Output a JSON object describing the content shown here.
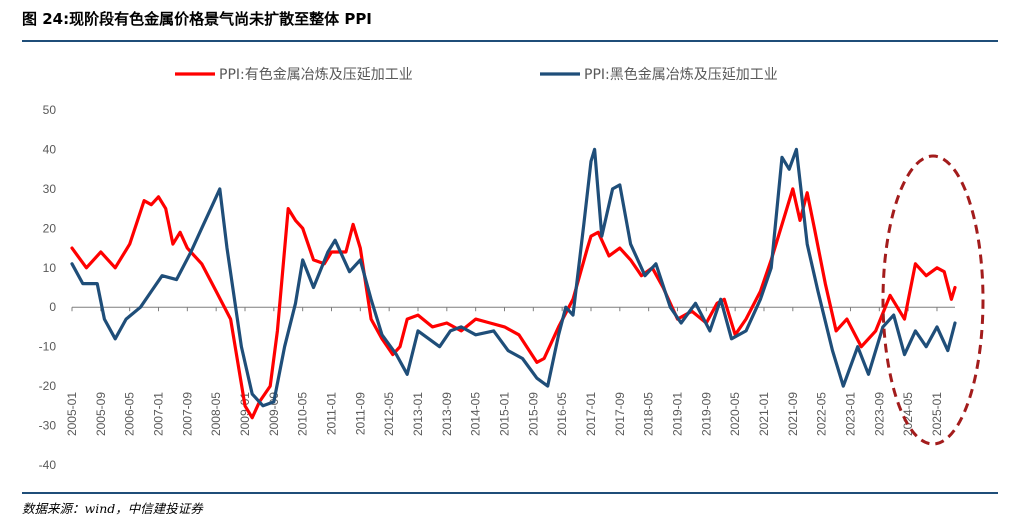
{
  "figure": {
    "title": "图 24:现阶段有色金属价格景气尚未扩散至整体 PPI",
    "source": "数据来源：wind，中信建投证券"
  },
  "chart_data": {
    "type": "line",
    "title": "图 24:现阶段有色金属价格景气尚未扩散至整体 PPI",
    "xlabel": "",
    "ylabel": "",
    "ylim": [
      -40,
      50
    ],
    "yticks": [
      -40,
      -30,
      -20,
      -10,
      0,
      10,
      20,
      30,
      40,
      50
    ],
    "x_range": [
      "2005-01",
      "2025-06"
    ],
    "x_ticks": [
      "2005-01",
      "2005-09",
      "2006-05",
      "2007-01",
      "2007-09",
      "2008-05",
      "2009-01",
      "2009-09",
      "2010-05",
      "2011-01",
      "2011-09",
      "2012-05",
      "2013-01",
      "2013-09",
      "2014-05",
      "2015-01",
      "2015-09",
      "2016-05",
      "2017-01",
      "2017-09",
      "2018-05",
      "2019-01",
      "2019-09",
      "2020-05",
      "2021-01",
      "2021-09",
      "2022-05",
      "2023-01",
      "2023-09",
      "2024-05",
      "2025-01"
    ],
    "legend_position": "top",
    "grid": false,
    "annotation": "dashed ellipse highlighting 2024–2025",
    "series": [
      {
        "name": "PPI:有色金属冶炼及压延加工业",
        "color": "#ff0000",
        "points": [
          [
            "2005-01",
            15
          ],
          [
            "2005-05",
            10
          ],
          [
            "2005-09",
            14
          ],
          [
            "2006-01",
            10
          ],
          [
            "2006-05",
            16
          ],
          [
            "2006-09",
            27
          ],
          [
            "2006-11",
            26
          ],
          [
            "2007-01",
            28
          ],
          [
            "2007-03",
            25
          ],
          [
            "2007-05",
            16
          ],
          [
            "2007-07",
            19
          ],
          [
            "2007-09",
            15
          ],
          [
            "2008-01",
            11
          ],
          [
            "2008-05",
            4
          ],
          [
            "2008-09",
            -3
          ],
          [
            "2009-01",
            -25
          ],
          [
            "2009-03",
            -28
          ],
          [
            "2009-05",
            -24
          ],
          [
            "2009-08",
            -20
          ],
          [
            "2009-10",
            -6
          ],
          [
            "2010-01",
            25
          ],
          [
            "2010-03",
            22
          ],
          [
            "2010-05",
            20
          ],
          [
            "2010-08",
            12
          ],
          [
            "2010-11",
            11
          ],
          [
            "2011-01",
            14
          ],
          [
            "2011-05",
            14
          ],
          [
            "2011-07",
            21
          ],
          [
            "2011-09",
            15
          ],
          [
            "2011-12",
            -3
          ],
          [
            "2012-03",
            -8
          ],
          [
            "2012-06",
            -12
          ],
          [
            "2012-08",
            -10
          ],
          [
            "2012-10",
            -3
          ],
          [
            "2013-01",
            -2
          ],
          [
            "2013-05",
            -5
          ],
          [
            "2013-09",
            -4
          ],
          [
            "2014-01",
            -6
          ],
          [
            "2014-05",
            -3
          ],
          [
            "2014-09",
            -4
          ],
          [
            "2015-01",
            -5
          ],
          [
            "2015-05",
            -7
          ],
          [
            "2015-10",
            -14
          ],
          [
            "2015-12",
            -13
          ],
          [
            "2016-04",
            -5
          ],
          [
            "2016-08",
            2
          ],
          [
            "2016-12",
            15
          ],
          [
            "2017-01",
            18
          ],
          [
            "2017-03",
            19
          ],
          [
            "2017-06",
            13
          ],
          [
            "2017-09",
            15
          ],
          [
            "2017-12",
            12
          ],
          [
            "2018-03",
            8
          ],
          [
            "2018-06",
            10
          ],
          [
            "2018-09",
            5
          ],
          [
            "2019-01",
            -3
          ],
          [
            "2019-05",
            -1
          ],
          [
            "2019-09",
            -4
          ],
          [
            "2019-12",
            1
          ],
          [
            "2020-02",
            2
          ],
          [
            "2020-05",
            -7
          ],
          [
            "2020-08",
            -3
          ],
          [
            "2020-12",
            4
          ],
          [
            "2021-03",
            12
          ],
          [
            "2021-07",
            24
          ],
          [
            "2021-09",
            30
          ],
          [
            "2021-11",
            22
          ],
          [
            "2022-01",
            29
          ],
          [
            "2022-03",
            20
          ],
          [
            "2022-06",
            6
          ],
          [
            "2022-09",
            -6
          ],
          [
            "2022-12",
            -3
          ],
          [
            "2023-04",
            -10
          ],
          [
            "2023-08",
            -6
          ],
          [
            "2023-12",
            3
          ],
          [
            "2024-04",
            -3
          ],
          [
            "2024-07",
            11
          ],
          [
            "2024-10",
            8
          ],
          [
            "2025-01",
            10
          ],
          [
            "2025-03",
            9
          ],
          [
            "2025-05",
            2
          ],
          [
            "2025-06",
            5
          ]
        ]
      },
      {
        "name": "PPI:黑色金属冶炼及压延加工业",
        "color": "#1f4e79",
        "points": [
          [
            "2005-01",
            11
          ],
          [
            "2005-04",
            6
          ],
          [
            "2005-08",
            6
          ],
          [
            "2005-10",
            -3
          ],
          [
            "2006-01",
            -8
          ],
          [
            "2006-04",
            -3
          ],
          [
            "2006-08",
            0
          ],
          [
            "2006-11",
            4
          ],
          [
            "2007-02",
            8
          ],
          [
            "2007-06",
            7
          ],
          [
            "2007-10",
            14
          ],
          [
            "2008-01",
            20
          ],
          [
            "2008-04",
            26
          ],
          [
            "2008-06",
            30
          ],
          [
            "2008-08",
            15
          ],
          [
            "2008-12",
            -10
          ],
          [
            "2009-03",
            -22
          ],
          [
            "2009-06",
            -25
          ],
          [
            "2009-09",
            -24
          ],
          [
            "2009-12",
            -10
          ],
          [
            "2010-03",
            1
          ],
          [
            "2010-05",
            12
          ],
          [
            "2010-08",
            5
          ],
          [
            "2010-12",
            14
          ],
          [
            "2011-02",
            17
          ],
          [
            "2011-06",
            9
          ],
          [
            "2011-09",
            12
          ],
          [
            "2011-12",
            2
          ],
          [
            "2012-03",
            -7
          ],
          [
            "2012-07",
            -12
          ],
          [
            "2012-10",
            -17
          ],
          [
            "2013-01",
            -6
          ],
          [
            "2013-04",
            -8
          ],
          [
            "2013-07",
            -10
          ],
          [
            "2013-10",
            -6
          ],
          [
            "2014-01",
            -5
          ],
          [
            "2014-05",
            -7
          ],
          [
            "2014-10",
            -6
          ],
          [
            "2015-02",
            -11
          ],
          [
            "2015-06",
            -13
          ],
          [
            "2015-10",
            -18
          ],
          [
            "2016-01",
            -20
          ],
          [
            "2016-04",
            -7
          ],
          [
            "2016-06",
            0
          ],
          [
            "2016-08",
            -2
          ],
          [
            "2016-11",
            21
          ],
          [
            "2017-01",
            37
          ],
          [
            "2017-02",
            40
          ],
          [
            "2017-04",
            18
          ],
          [
            "2017-07",
            30
          ],
          [
            "2017-09",
            31
          ],
          [
            "2017-12",
            16
          ],
          [
            "2018-04",
            8
          ],
          [
            "2018-07",
            11
          ],
          [
            "2018-11",
            0
          ],
          [
            "2019-02",
            -4
          ],
          [
            "2019-06",
            1
          ],
          [
            "2019-10",
            -6
          ],
          [
            "2020-01",
            2
          ],
          [
            "2020-04",
            -8
          ],
          [
            "2020-08",
            -6
          ],
          [
            "2020-12",
            2
          ],
          [
            "2021-03",
            10
          ],
          [
            "2021-06",
            38
          ],
          [
            "2021-08",
            35
          ],
          [
            "2021-10",
            40
          ],
          [
            "2022-01",
            16
          ],
          [
            "2022-04",
            4
          ],
          [
            "2022-08",
            -11
          ],
          [
            "2022-11",
            -20
          ],
          [
            "2023-03",
            -10
          ],
          [
            "2023-06",
            -17
          ],
          [
            "2023-10",
            -5
          ],
          [
            "2024-01",
            -2
          ],
          [
            "2024-04",
            -12
          ],
          [
            "2024-07",
            -6
          ],
          [
            "2024-10",
            -10
          ],
          [
            "2025-01",
            -5
          ],
          [
            "2025-04",
            -11
          ],
          [
            "2025-06",
            -4
          ]
        ]
      }
    ]
  }
}
